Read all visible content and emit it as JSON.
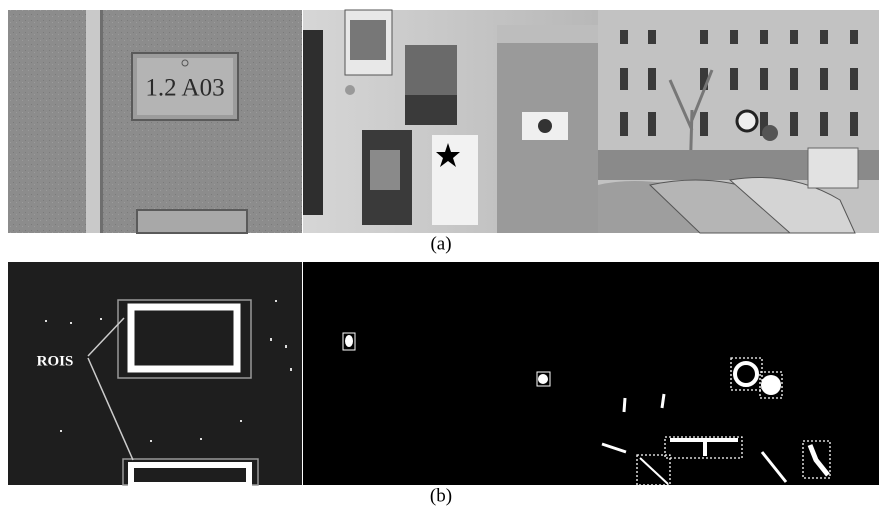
{
  "figure": {
    "row_a": {
      "sign_text": "1.2 A03",
      "caption": "(a)"
    },
    "row_b": {
      "roi_label": "ROIS",
      "caption": "(b)"
    }
  }
}
